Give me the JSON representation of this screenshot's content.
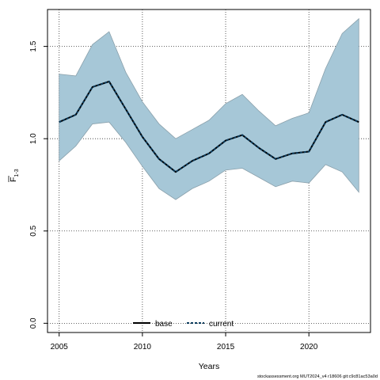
{
  "chart_data": {
    "type": "area",
    "xlabel": "Years",
    "ylabel_main": "F",
    "ylabel_sub": "1-3",
    "xlim": [
      2004.3,
      2023.7
    ],
    "ylim": [
      -0.05,
      1.7
    ],
    "xticks": [
      2005,
      2010,
      2015,
      2020
    ],
    "yticks": [
      0.0,
      0.5,
      1.0,
      1.5
    ],
    "ytick_labels": [
      "0.0",
      "0.5",
      "1.0",
      "1.5"
    ],
    "grid": true,
    "legend_position": "bottom",
    "x": [
      2005,
      2006,
      2007,
      2008,
      2009,
      2010,
      2011,
      2012,
      2013,
      2014,
      2015,
      2016,
      2017,
      2018,
      2019,
      2020,
      2021,
      2022,
      2023
    ],
    "band": {
      "lower": [
        0.88,
        0.96,
        1.08,
        1.09,
        0.98,
        0.85,
        0.73,
        0.67,
        0.73,
        0.77,
        0.83,
        0.84,
        0.79,
        0.74,
        0.77,
        0.76,
        0.86,
        0.82,
        0.71
      ],
      "upper": [
        1.35,
        1.34,
        1.51,
        1.58,
        1.36,
        1.2,
        1.08,
        1.0,
        1.05,
        1.1,
        1.19,
        1.24,
        1.15,
        1.07,
        1.11,
        1.14,
        1.38,
        1.57,
        1.65
      ]
    },
    "series": [
      {
        "name": "base",
        "values": [
          1.09,
          1.13,
          1.28,
          1.31,
          1.16,
          1.01,
          0.89,
          0.82,
          0.88,
          0.92,
          0.99,
          1.02,
          0.95,
          0.89,
          0.92,
          0.93,
          1.09,
          1.13,
          1.09
        ]
      },
      {
        "name": "current",
        "values": [
          1.09,
          1.13,
          1.28,
          1.31,
          1.16,
          1.01,
          0.89,
          0.82,
          0.88,
          0.92,
          0.99,
          1.02,
          0.95,
          0.89,
          0.92,
          0.93,
          1.09,
          1.13,
          1.09
        ]
      }
    ],
    "colors": {
      "band_fill": "#a6c7d7",
      "band_edge": "#8aa0ab",
      "base_line": "#000000",
      "current_line": "#0b3b5c",
      "grid": "#333333"
    }
  },
  "footer": {
    "text": "stockassessment.org MUT2024_v4 r18606 git:c9c81ac53a0d"
  }
}
